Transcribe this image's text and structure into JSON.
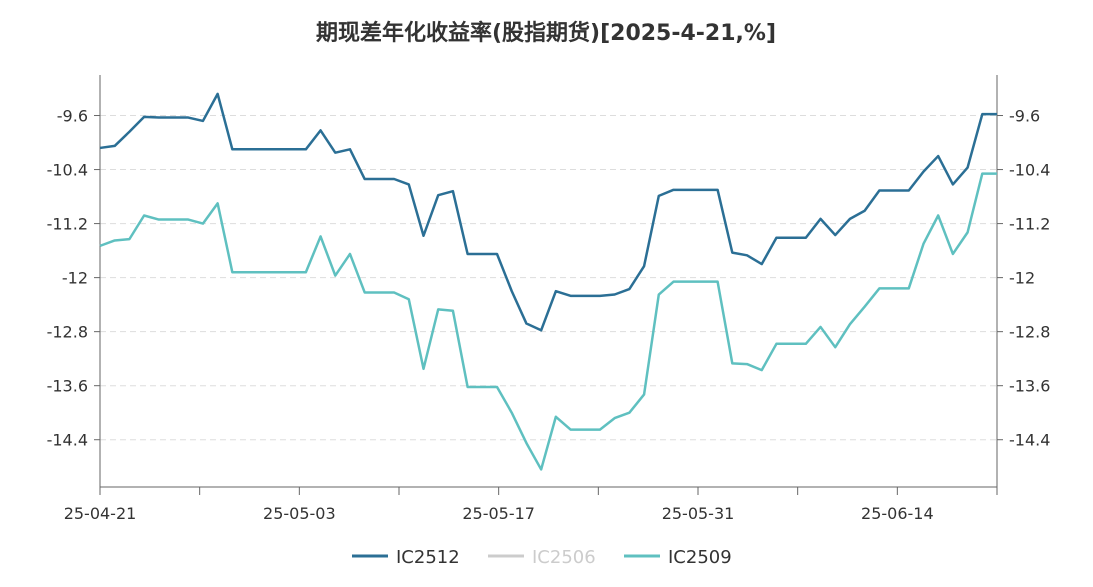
{
  "chart_data": {
    "type": "line",
    "title": "期现差年化收益率(股指期货)[2025-4-21,%]",
    "x_tick_labels": [
      "25-04-21",
      "25-05-03",
      "25-05-17",
      "25-05-31",
      "25-06-14"
    ],
    "y_ticks": [
      -9.6,
      -10.4,
      -11.2,
      -12,
      -12.8,
      -13.6,
      -14.4
    ],
    "ylim": [
      -15.1,
      -9.0
    ],
    "grid": true,
    "legend_position": "bottom",
    "series": [
      {
        "name": "IC2512",
        "color": "#2b6f95",
        "visible": true,
        "values": [
          -10.08,
          -10.05,
          -9.84,
          -9.62,
          -9.63,
          -9.63,
          -9.63,
          -9.68,
          -9.28,
          -10.1,
          -10.1,
          -10.1,
          -10.1,
          -10.1,
          -10.1,
          -9.82,
          -10.15,
          -10.1,
          -10.54,
          -10.54,
          -10.54,
          -10.62,
          -11.38,
          -10.78,
          -10.72,
          -11.65,
          -11.65,
          -11.65,
          -12.2,
          -12.68,
          -12.78,
          -12.2,
          -12.27,
          -12.27,
          -12.27,
          -12.25,
          -12.17,
          -11.83,
          -10.79,
          -10.7,
          -10.7,
          -10.7,
          -10.7,
          -11.63,
          -11.67,
          -11.8,
          -11.41,
          -11.41,
          -11.41,
          -11.13,
          -11.37,
          -11.13,
          -11.01,
          -10.71,
          -10.71,
          -10.71,
          -10.43,
          -10.2,
          -10.62,
          -10.37,
          -9.58,
          -9.58
        ]
      },
      {
        "name": "IC2506",
        "color": "#cccccc",
        "visible": false,
        "values": []
      },
      {
        "name": "IC2509",
        "color": "#5fc0c0",
        "visible": true,
        "values": [
          -11.53,
          -11.45,
          -11.43,
          -11.08,
          -11.14,
          -11.14,
          -11.14,
          -11.2,
          -10.9,
          -11.92,
          -11.92,
          -11.92,
          -11.92,
          -11.92,
          -11.92,
          -11.39,
          -11.97,
          -11.65,
          -12.22,
          -12.22,
          -12.22,
          -12.32,
          -13.35,
          -12.47,
          -12.49,
          -13.62,
          -13.62,
          -13.62,
          -14.0,
          -14.45,
          -14.84,
          -14.06,
          -14.25,
          -14.25,
          -14.25,
          -14.08,
          -14.0,
          -13.73,
          -12.25,
          -12.06,
          -12.06,
          -12.06,
          -12.06,
          -13.27,
          -13.28,
          -13.37,
          -12.98,
          -12.98,
          -12.98,
          -12.73,
          -13.03,
          -12.69,
          -12.43,
          -12.16,
          -12.16,
          -12.16,
          -11.5,
          -11.08,
          -11.65,
          -11.33,
          -10.46,
          -10.46
        ]
      }
    ]
  }
}
